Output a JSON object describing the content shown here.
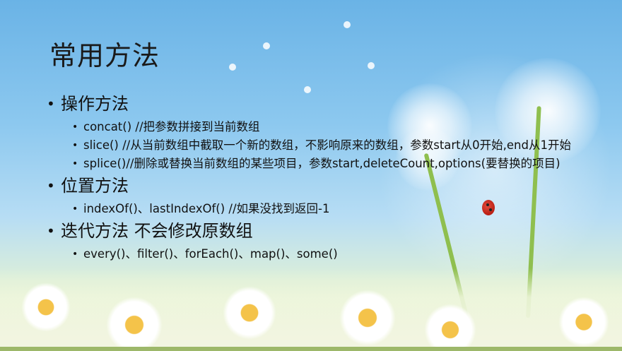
{
  "slide": {
    "title": "常用方法",
    "sections": [
      {
        "heading": "操作方法",
        "items": [
          "concat()  //把参数拼接到当前数组",
          "slice() //从当前数组中截取一个新的数组，不影响原来的数组，参数start从0开始,end从1开始",
          "splice()//删除或替换当前数组的某些项目，参数start,deleteCount,options(要替换的项目)"
        ]
      },
      {
        "heading": "位置方法",
        "items": [
          "indexOf()、lastIndexOf()   //如果没找到返回-1"
        ]
      },
      {
        "heading": "迭代方法 不会修改原数组",
        "items": [
          "every()、filter()、forEach()、map()、some()"
        ]
      }
    ]
  }
}
